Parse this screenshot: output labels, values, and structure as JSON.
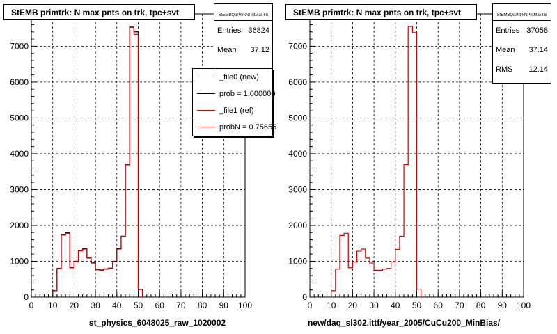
{
  "chart_data": [
    {
      "type": "step",
      "title": "StEMB primtrk: N max pnts on trk, tpc+svt",
      "xlabel": "st_physics_6048025_raw_1020002",
      "ylabel": "",
      "xlim": [
        0,
        100
      ],
      "ylim": [
        0,
        7900
      ],
      "x_ticks": [
        0,
        10,
        20,
        30,
        40,
        50,
        60,
        70,
        80,
        90,
        100
      ],
      "y_ticks": [
        0,
        1000,
        2000,
        3000,
        4000,
        5000,
        6000,
        7000
      ],
      "grid": true,
      "bin_width": 2,
      "bin_low_edges": [
        10,
        12,
        14,
        16,
        18,
        20,
        22,
        24,
        26,
        28,
        30,
        32,
        34,
        36,
        38,
        40,
        42,
        44,
        46,
        48,
        50
      ],
      "series": [
        {
          "name": "_file0 (new)",
          "color": "#000000",
          "values": [
            180,
            800,
            1750,
            1800,
            820,
            1000,
            1300,
            1350,
            1100,
            950,
            780,
            760,
            780,
            800,
            1000,
            1350,
            1700,
            3700,
            7550,
            7400,
            220
          ]
        },
        {
          "name": "_file1 (ref)",
          "color": "#cc0000",
          "values": [
            180,
            790,
            1730,
            1780,
            830,
            990,
            1290,
            1340,
            1090,
            960,
            760,
            750,
            790,
            810,
            990,
            1340,
            1700,
            3690,
            7520,
            7330,
            210
          ]
        }
      ],
      "stats": {
        "header": "StEMBQaPrtrkNPntMaxTS",
        "entries_label": "Entries",
        "entries": "36824",
        "mean_label": "Mean",
        "mean": "37.12"
      },
      "legend": {
        "entries": [
          "_file0 (new)",
          "prob = 1.000000",
          "_file1 (ref)",
          "probN = 0.75656"
        ],
        "colors": [
          "#000000",
          "#000000",
          "#cc0000",
          "#cc0000"
        ],
        "placement": "top-right"
      }
    },
    {
      "type": "step",
      "title": "StEMB primtrk: N max pnts on trk, tpc+svt",
      "xlabel": "new/daq_sl302.ittf/year_2005/CuCu200_MinBias/",
      "ylabel": "",
      "xlim": [
        0,
        100
      ],
      "ylim": [
        0,
        7900
      ],
      "x_ticks": [
        0,
        10,
        20,
        30,
        40,
        50,
        60,
        70,
        80,
        90,
        100
      ],
      "y_ticks": [
        0,
        1000,
        2000,
        3000,
        4000,
        5000,
        6000,
        7000
      ],
      "grid": true,
      "bin_width": 2,
      "bin_low_edges": [
        10,
        12,
        14,
        16,
        18,
        20,
        22,
        24,
        26,
        28,
        30,
        32,
        34,
        36,
        38,
        40,
        42,
        44,
        46,
        48,
        50
      ],
      "series": [
        {
          "name": "",
          "color": "#cc0000",
          "values": [
            180,
            780,
            1720,
            1780,
            820,
            980,
            1280,
            1340,
            1090,
            950,
            750,
            750,
            780,
            800,
            980,
            1330,
            1700,
            3700,
            7550,
            7380,
            220
          ]
        }
      ],
      "stats": {
        "header": "StEMBQaPrtrkNPntMaxTS",
        "entries_label": "Entries",
        "entries": "37058",
        "mean_label": "Mean",
        "mean": "37.14",
        "rms_label": "RMS",
        "rms": "12.14"
      }
    }
  ]
}
